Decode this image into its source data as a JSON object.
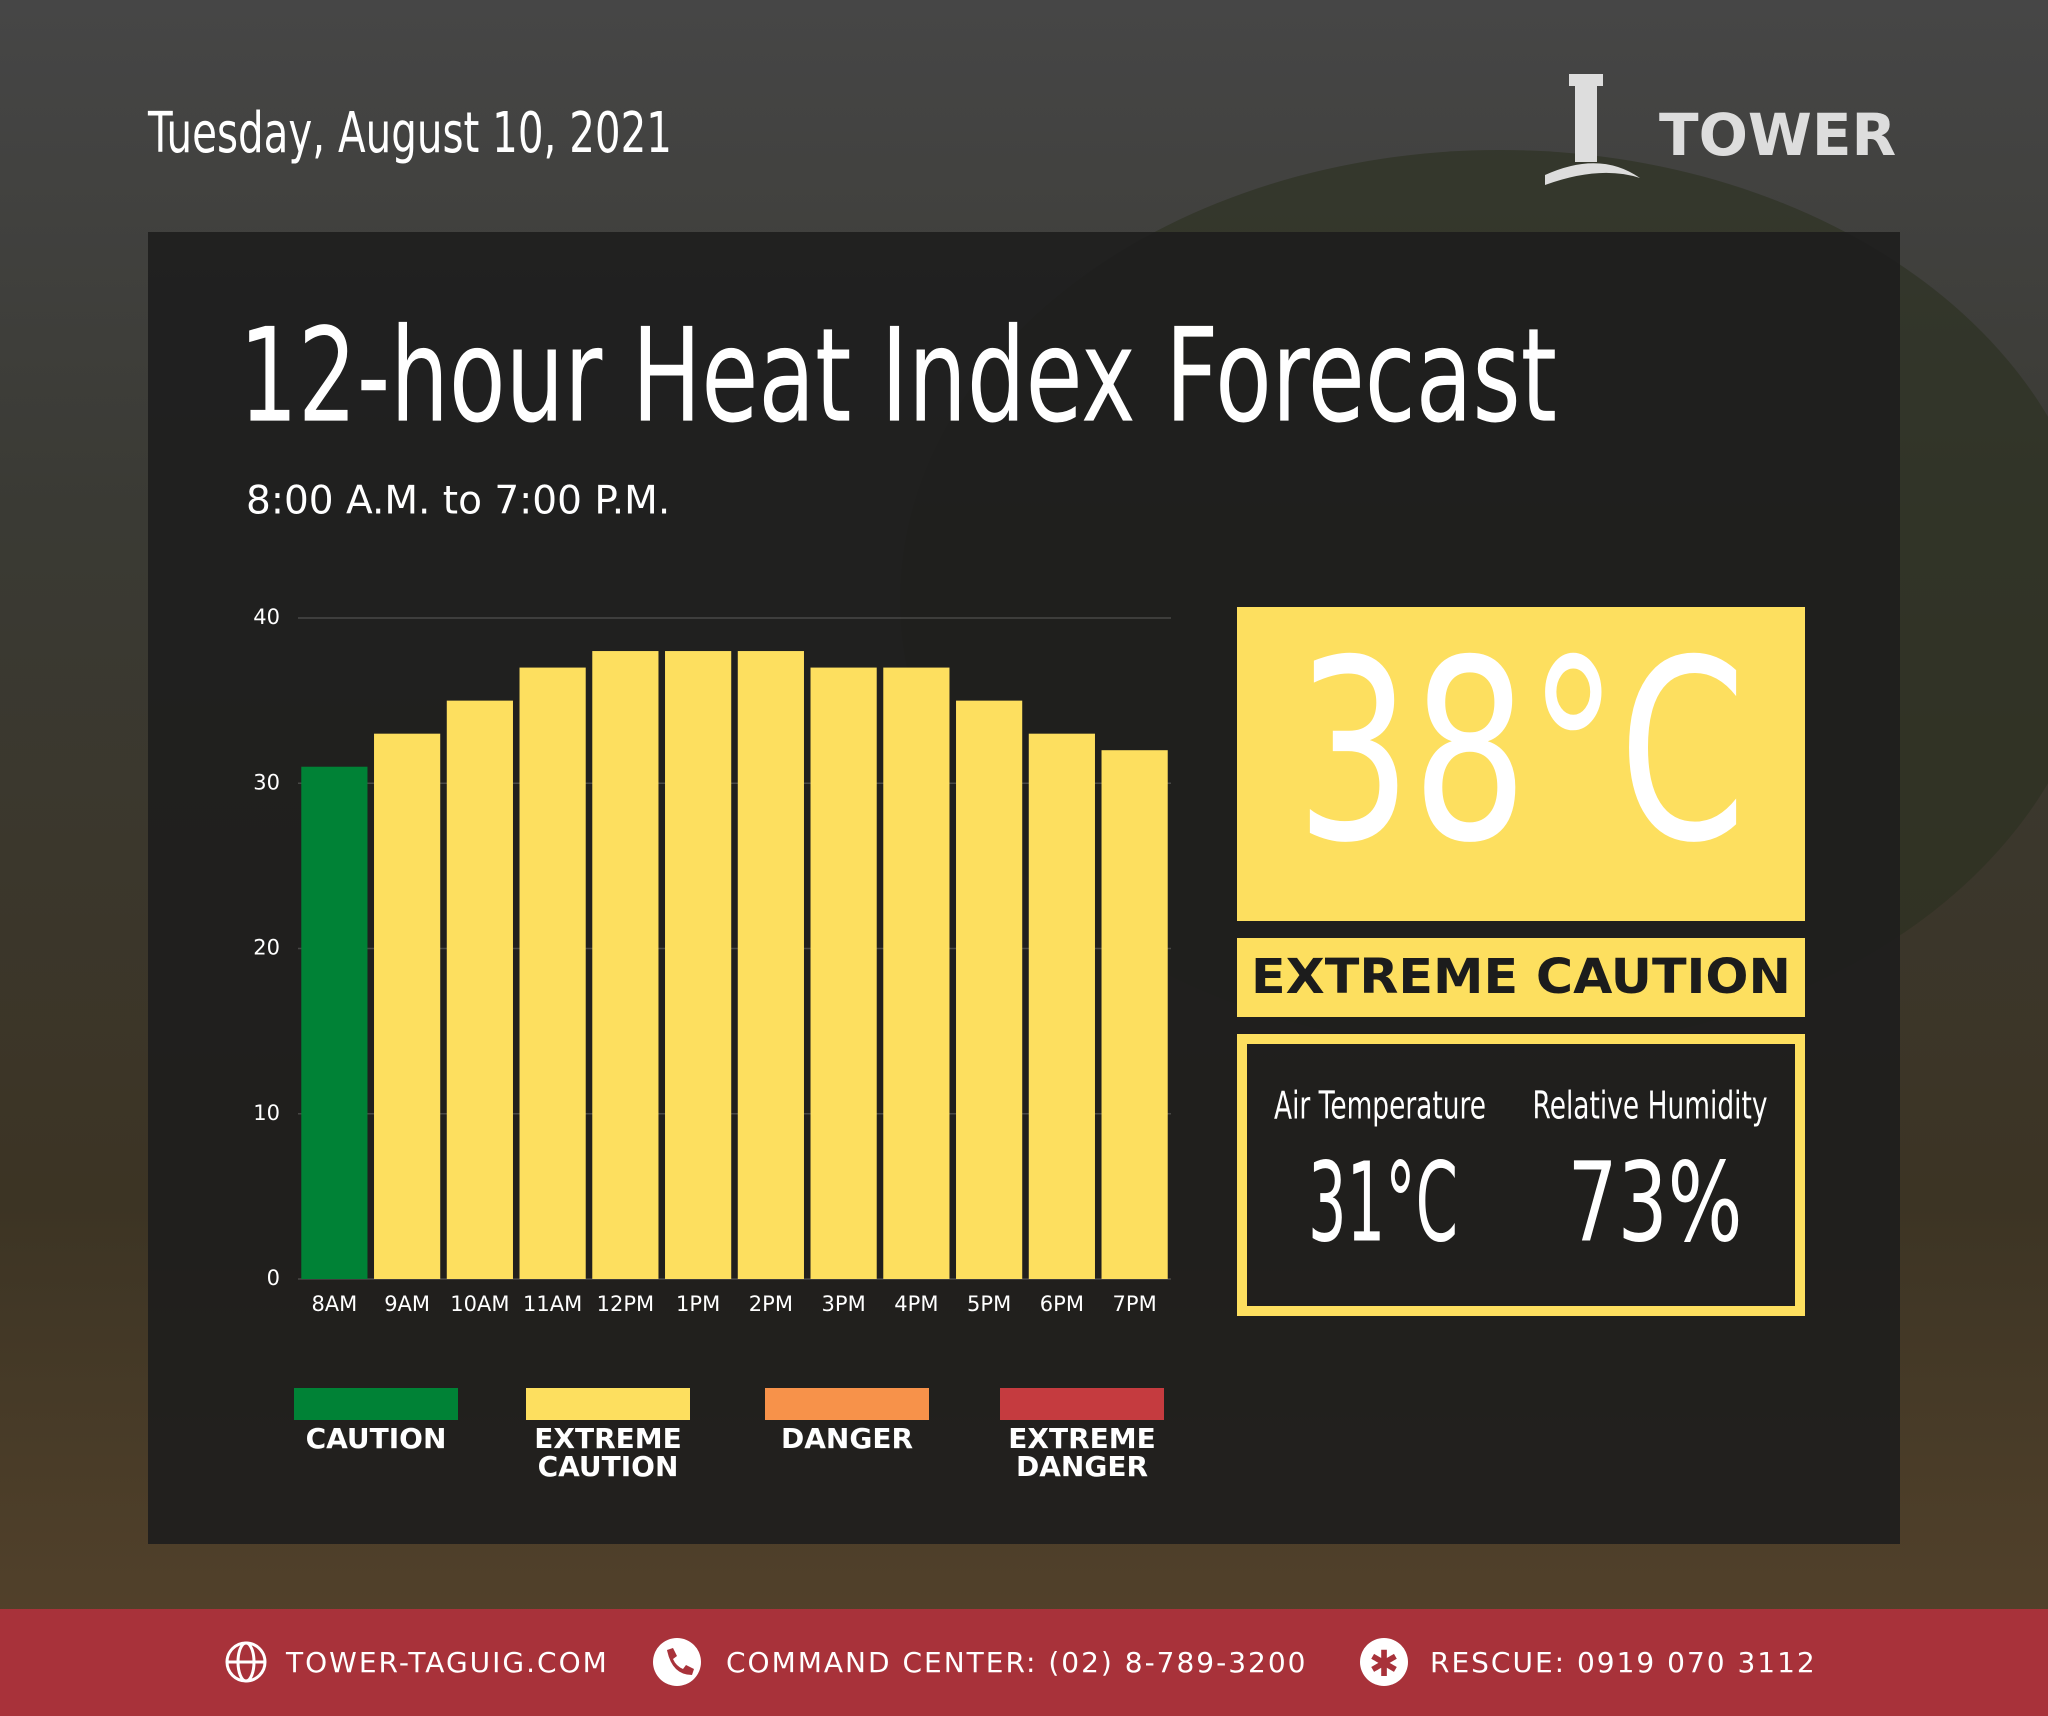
{
  "header": {
    "date": "Tuesday, August 10, 2021",
    "brand": "TOWER"
  },
  "chart_data": {
    "type": "bar",
    "title": "12-hour Heat Index Forecast",
    "subtitle": "8:00 A.M. to 7:00 P.M.",
    "categories": [
      "8AM",
      "9AM",
      "10AM",
      "11AM",
      "12PM",
      "1PM",
      "2PM",
      "3PM",
      "4PM",
      "5PM",
      "6PM",
      "7PM"
    ],
    "values": [
      31,
      33,
      35,
      37,
      38,
      38,
      38,
      37,
      37,
      35,
      33,
      32
    ],
    "colors": [
      "#008236",
      "#fddf5f",
      "#fddf5f",
      "#fddf5f",
      "#fddf5f",
      "#fddf5f",
      "#fddf5f",
      "#fddf5f",
      "#fddf5f",
      "#fddf5f",
      "#fddf5f",
      "#fddf5f"
    ],
    "ylim": [
      0,
      40
    ],
    "yticks": [
      0,
      10,
      20,
      30,
      40
    ],
    "grid": true,
    "legend": [
      {
        "label": "CAUTION",
        "color": "#008236"
      },
      {
        "label": "EXTREME CAUTION",
        "color": "#fddf5f"
      },
      {
        "label": "DANGER",
        "color": "#f7924a"
      },
      {
        "label": "EXTREME DANGER",
        "color": "#c53b3f"
      }
    ]
  },
  "summary": {
    "heat_index": "38°C",
    "level": "EXTREME CAUTION",
    "air_temperature_label": "Air Temperature",
    "air_temperature": "31°C",
    "humidity_label": "Relative Humidity",
    "humidity": "73%"
  },
  "footer": {
    "website": "TOWER-TAGUIG.COM",
    "command_center": "COMMAND CENTER: (02) 8-789-3200",
    "rescue": "RESCUE: 0919 070 3112"
  }
}
